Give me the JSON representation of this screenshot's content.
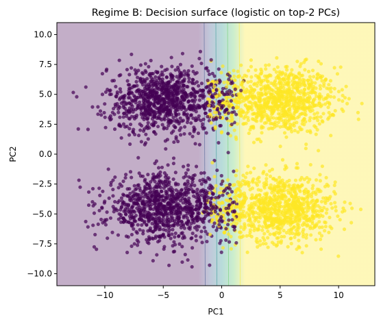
{
  "chart_data": {
    "type": "scatter",
    "title": "Regime B: Decision surface (logistic on top-2 PCs)",
    "xlabel": "PC1",
    "ylabel": "PC2",
    "xlim": [
      -14.1,
      13.1
    ],
    "ylim": [
      -11.0,
      11.0
    ],
    "x_ticks": [
      -10,
      -5,
      0,
      5,
      10
    ],
    "y_ticks": [
      -10.0,
      -7.5,
      -5.0,
      -2.5,
      0.0,
      2.5,
      5.0,
      7.5,
      10.0
    ],
    "x_tick_labels": [
      "−10",
      "−5",
      "0",
      "5",
      "10"
    ],
    "y_tick_labels": [
      "−10.0",
      "−7.5",
      "−5.0",
      "−2.5",
      "0.0",
      "2.5",
      "5.0",
      "7.5",
      "10.0"
    ],
    "grid": false,
    "legend": "none",
    "decision_surface": {
      "boundary_x": 0.0,
      "transition_width": 2.0,
      "class0_color": "#440154",
      "class1_color": "#fde725",
      "alpha": 0.32
    },
    "series": [
      {
        "class": 0,
        "color": "#440154",
        "clusters": [
          {
            "center_x": -5.0,
            "center_y": 4.5,
            "spread_x": 2.4,
            "spread_y": 1.4
          },
          {
            "center_x": -5.0,
            "center_y": -4.5,
            "spread_x": 2.4,
            "spread_y": 1.4
          }
        ],
        "x_range": [
          -13.0,
          2.0
        ],
        "y_range": [
          -9.5,
          8.7
        ]
      },
      {
        "class": 1,
        "color": "#fde725",
        "clusters": [
          {
            "center_x": 5.0,
            "center_y": 4.5,
            "spread_x": 2.4,
            "spread_y": 1.4
          },
          {
            "center_x": 5.0,
            "center_y": -4.5,
            "spread_x": 2.4,
            "spread_y": 1.4
          }
        ],
        "x_range": [
          -2.0,
          12.0
        ],
        "y_range": [
          -9.8,
          8.7
        ]
      }
    ]
  }
}
